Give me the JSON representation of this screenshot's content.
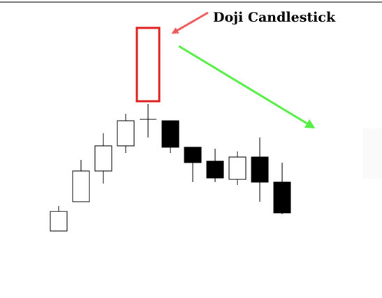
{
  "chart_data": {
    "type": "candlestick",
    "title": "",
    "xlabel": "",
    "ylabel": "",
    "ylim": [
      0,
      100
    ],
    "grid": false,
    "legend": "none",
    "candles": [
      {
        "open": 23,
        "close": 37,
        "high": 41,
        "low": 23,
        "color": "bullish"
      },
      {
        "open": 44,
        "close": 66,
        "high": 74,
        "low": 44,
        "color": "bullish"
      },
      {
        "open": 66,
        "close": 84,
        "high": 93,
        "low": 57,
        "color": "bullish"
      },
      {
        "open": 84,
        "close": 102,
        "high": 107,
        "low": 79,
        "color": "bullish"
      },
      {
        "open": 103,
        "close": 103,
        "high": 114,
        "low": 90,
        "color": "doji"
      },
      {
        "open": 102,
        "close": 83,
        "high": 102,
        "low": 79,
        "color": "bearish"
      },
      {
        "open": 83,
        "close": 72,
        "high": 83,
        "low": 58,
        "color": "bearish"
      },
      {
        "open": 73,
        "close": 61,
        "high": 82,
        "low": 58,
        "color": "bearish"
      },
      {
        "open": 60,
        "close": 76,
        "high": 80,
        "low": 56,
        "color": "bullish"
      },
      {
        "open": 76,
        "close": 58,
        "high": 90,
        "low": 44,
        "color": "bearish"
      },
      {
        "open": 58,
        "close": 36,
        "high": 72,
        "low": 35,
        "color": "bearish"
      }
    ],
    "annotations": [
      {
        "text": "Doji Candlestick",
        "target_index": 4
      }
    ]
  },
  "colors": {
    "highlight_box": "#e0201f",
    "arrow_to_label": "#ee5a5a",
    "trend_arrow": "#55ee44",
    "bearish_fill": "#000000",
    "bullish_fill": "#ffffff",
    "outline": "#000000"
  }
}
